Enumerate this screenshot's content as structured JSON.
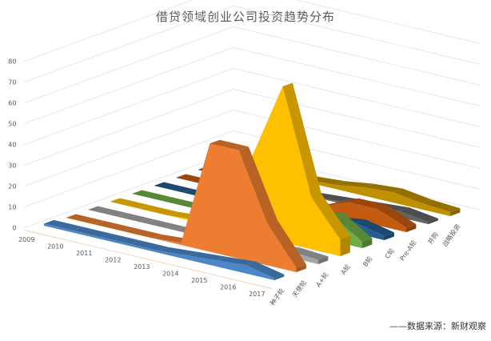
{
  "chart_data": {
    "type": "area",
    "subtype": "3d-area",
    "title": "借贷领域创业公司投资趋势分布",
    "x": [
      "2009",
      "2010",
      "2011",
      "2012",
      "2013",
      "2014",
      "2015",
      "2016",
      "2017"
    ],
    "ylim": [
      0,
      80
    ],
    "yticks": [
      0,
      10,
      20,
      30,
      40,
      50,
      60,
      70,
      80
    ],
    "grid": true,
    "series": [
      {
        "name": "种子轮",
        "color": "#4a86c8",
        "values": [
          1,
          1,
          1,
          1,
          1,
          2,
          3,
          4,
          1
        ]
      },
      {
        "name": "天使轮",
        "color": "#ed7d31",
        "values": [
          0,
          0,
          0,
          0,
          1,
          52,
          52,
          20,
          2
        ]
      },
      {
        "name": "A+轮",
        "color": "#a5a5a5",
        "values": [
          0,
          0,
          0,
          0,
          0,
          0,
          1,
          3,
          2
        ]
      },
      {
        "name": "A轮",
        "color": "#ffc000",
        "values": [
          0,
          0,
          0,
          1,
          3,
          40,
          75,
          25,
          8
        ]
      },
      {
        "name": "B轮",
        "color": "#70ad47",
        "values": [
          0,
          0,
          0,
          0,
          1,
          4,
          10,
          12,
          3
        ]
      },
      {
        "name": "C轮",
        "color": "#255e91",
        "values": [
          0,
          0,
          0,
          0,
          0,
          1,
          3,
          5,
          2
        ]
      },
      {
        "name": "Pre-A轮",
        "color": "#c55a11",
        "values": [
          0,
          0,
          0,
          0,
          1,
          2,
          8,
          8,
          2
        ]
      },
      {
        "name": "并购",
        "color": "#636363",
        "values": [
          0,
          0,
          0,
          0,
          0,
          1,
          2,
          3,
          1
        ]
      },
      {
        "name": "战略投资",
        "color": "#bf9000",
        "values": [
          0,
          0,
          0,
          1,
          2,
          4,
          5,
          3,
          2
        ]
      }
    ]
  },
  "source": "——数据来源：新财观察"
}
